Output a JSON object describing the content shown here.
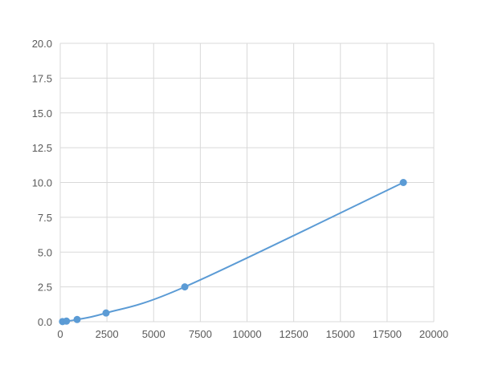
{
  "chart_data": {
    "type": "scatter",
    "title": "",
    "xlabel": "",
    "ylabel": "",
    "xlim": [
      0,
      20000
    ],
    "ylim": [
      0,
      20
    ],
    "xticks": [
      "0",
      "2500",
      "5000",
      "7500",
      "10000",
      "12500",
      "15000",
      "17500",
      "20000"
    ],
    "yticks": [
      "0.0",
      "2.5",
      "5.0",
      "7.5",
      "10.0",
      "12.5",
      "15.0",
      "17.5",
      "20.0"
    ],
    "grid": true,
    "color": "#5b9bd5",
    "series": [
      {
        "x": [
          122,
          332,
          903,
          2452,
          6667,
          18370
        ],
        "y": [
          0.039,
          0.156,
          0.156,
          0.625,
          2.5,
          10
        ],
        "smooth": true,
        "markers": true
      }
    ]
  }
}
